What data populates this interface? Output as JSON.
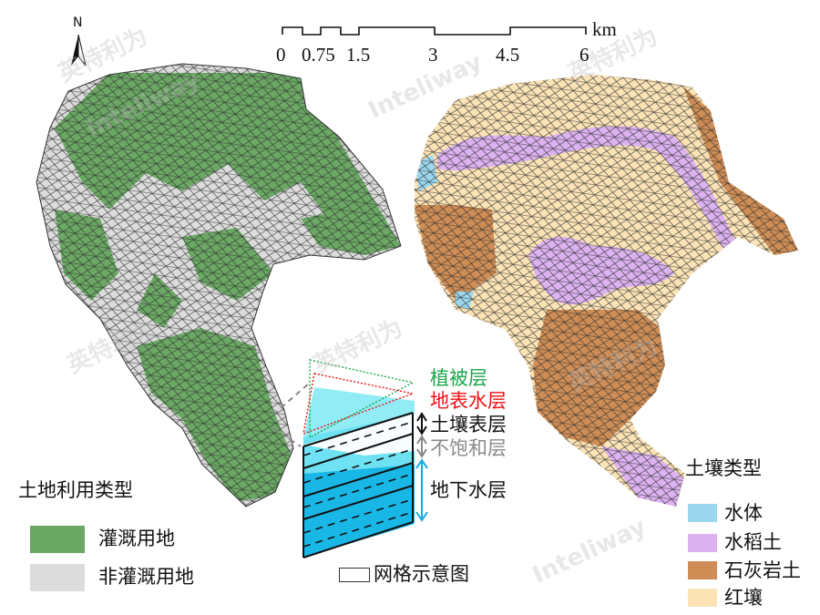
{
  "north_arrow": {
    "label": "N"
  },
  "scale_bar": {
    "ticks": [
      "0",
      "0.75",
      "1.5",
      "3",
      "4.5",
      "6"
    ],
    "unit": "km"
  },
  "land_use_legend": {
    "title": "土地利用类型",
    "items": [
      {
        "label": "灌溉用地",
        "color": "#6aa864"
      },
      {
        "label": "非灌溉用地",
        "color": "#dcdcdc"
      }
    ]
  },
  "soil_legend": {
    "title": "土壤类型",
    "items": [
      {
        "label": "水体",
        "color": "#9bd8ee"
      },
      {
        "label": "水稻土",
        "color": "#dcb2f0"
      },
      {
        "label": "石灰岩土",
        "color": "#cf8d55"
      },
      {
        "label": "红壤",
        "color": "#fbe3b6"
      }
    ]
  },
  "grid_schematic": {
    "legend_label": "网格示意图",
    "layers": [
      {
        "label": "植被层",
        "color": "#1aa64a"
      },
      {
        "label": "地表水层",
        "color": "#ee1111"
      },
      {
        "label": "土壤表层",
        "color": "#111111"
      },
      {
        "label": "不饱和层",
        "color": "#8a8a8a"
      },
      {
        "label": "地下水层",
        "color": "#111111"
      }
    ]
  },
  "watermark": {
    "cn": "英特利为",
    "en": "Inteliway"
  }
}
